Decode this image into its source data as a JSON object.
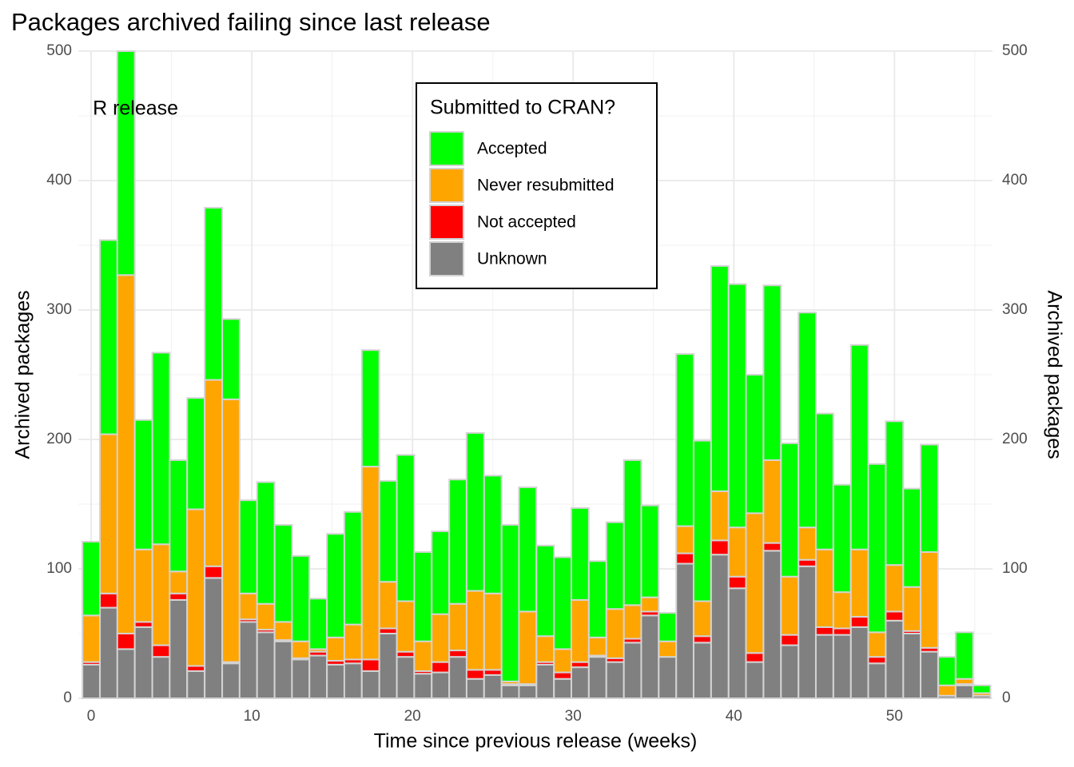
{
  "chart_data": {
    "type": "stacked_bar",
    "title": "Packages archived failing since last release",
    "xlabel": "Time since previous release (weeks)",
    "ylabel": "Archived packages",
    "y2label": "Archived packages",
    "annotation": {
      "text": "R release",
      "x": 0,
      "y": 455
    },
    "legend_title": "Submitted to CRAN?",
    "legend_position": "top-center",
    "grid": true,
    "xlim": [
      -0.8,
      56.1
    ],
    "xticks": [
      0,
      10,
      20,
      30,
      40,
      50
    ],
    "xticks_minor": [
      5,
      15,
      25,
      35,
      45,
      55
    ],
    "ylim": [
      0,
      500
    ],
    "yticks": [
      0,
      100,
      200,
      300,
      400,
      500
    ],
    "yticks_minor": [
      50,
      150,
      250,
      350,
      450
    ],
    "y2lim": [
      0,
      500
    ],
    "y2ticks": [
      0,
      100,
      200,
      300,
      400,
      500
    ],
    "bar_edge_color": "#d3d3d3",
    "x": [
      0,
      1.09,
      2.17,
      3.26,
      4.35,
      5.43,
      6.52,
      7.61,
      8.7,
      9.78,
      10.87,
      11.96,
      13.04,
      14.13,
      15.22,
      16.3,
      17.39,
      18.48,
      19.57,
      20.65,
      21.74,
      22.83,
      23.91,
      25,
      26.09,
      27.17,
      28.26,
      29.35,
      30.43,
      31.52,
      32.61,
      33.7,
      34.78,
      35.87,
      36.96,
      38.04,
      39.13,
      40.22,
      41.3,
      42.39,
      43.48,
      44.57,
      45.65,
      46.74,
      47.83,
      48.91,
      50,
      51.09,
      52.17,
      53.26,
      54.35,
      55.43
    ],
    "series": [
      {
        "name": "Accepted",
        "color": "#00ff00",
        "values": [
          57,
          150,
          173,
          100,
          148,
          86,
          86,
          133,
          62,
          72,
          94,
          75,
          66,
          39,
          80,
          87,
          90,
          78,
          113,
          69,
          64,
          96,
          122,
          91,
          121,
          96,
          70,
          71,
          71,
          59,
          67,
          112,
          71,
          22,
          133,
          124,
          174,
          188,
          107,
          135,
          103,
          166,
          105,
          83,
          158,
          130,
          111,
          76,
          83,
          22,
          36,
          6
        ]
      },
      {
        "name": "Never resubmitted",
        "color": "#ffa500",
        "values": [
          36,
          123,
          277,
          56,
          78,
          17,
          121,
          144,
          203,
          20,
          20,
          14,
          13,
          2,
          18,
          27,
          149,
          36,
          39,
          23,
          37,
          36,
          61,
          59,
          2,
          56,
          20,
          18,
          48,
          14,
          38,
          26,
          11,
          12,
          21,
          27,
          38,
          38,
          108,
          64,
          45,
          25,
          60,
          28,
          52,
          19,
          36,
          34,
          74,
          8,
          4,
          2
        ]
      },
      {
        "name": "Not accepted",
        "color": "#ff0000",
        "values": [
          2,
          11,
          12,
          4,
          9,
          5,
          4,
          9,
          1,
          2,
          2,
          1,
          1,
          3,
          3,
          3,
          9,
          4,
          4,
          2,
          8,
          5,
          7,
          4,
          1,
          1,
          2,
          5,
          4,
          1,
          3,
          3,
          3,
          0,
          8,
          5,
          11,
          9,
          7,
          6,
          8,
          5,
          6,
          5,
          8,
          5,
          7,
          2,
          3,
          0,
          1,
          0
        ]
      },
      {
        "name": "Unknown",
        "color": "#808080",
        "values": [
          26,
          70,
          38,
          55,
          32,
          76,
          21,
          93,
          27,
          59,
          51,
          44,
          30,
          33,
          26,
          27,
          21,
          50,
          32,
          19,
          20,
          32,
          15,
          18,
          10,
          10,
          26,
          15,
          24,
          32,
          28,
          43,
          64,
          32,
          104,
          43,
          111,
          85,
          28,
          114,
          41,
          102,
          49,
          49,
          55,
          27,
          60,
          50,
          36,
          2,
          10,
          2
        ]
      }
    ]
  }
}
